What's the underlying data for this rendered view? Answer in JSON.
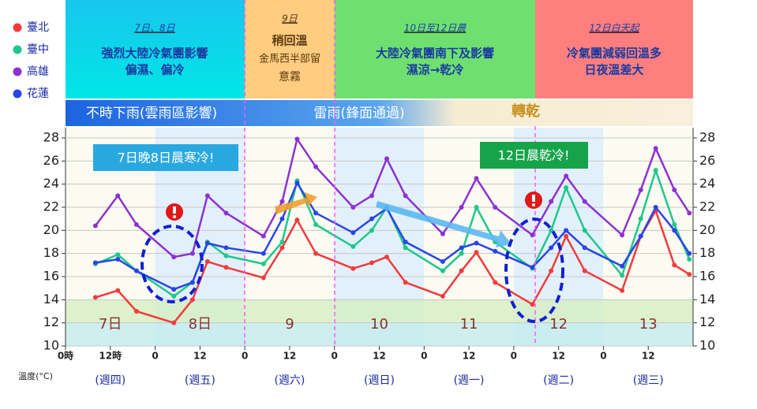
{
  "header": {
    "banners": [
      {
        "date": "7日、8日",
        "lines": [
          "強烈大陸冷氣團影響",
          "偏濕、偏冷"
        ]
      },
      {
        "date": "9日",
        "lines": [
          "稍回溫",
          "金馬西半部留",
          "意霧"
        ]
      },
      {
        "date": "10日至12日晨",
        "lines": [
          "大陸冷氣團南下及影響",
          "濕涼→乾冷"
        ]
      },
      {
        "date": "12日白天起",
        "lines": [
          "冷氣團減弱回溫多",
          "日夜溫差大"
        ]
      }
    ],
    "strip": [
      "不時下雨(雲雨區影響)",
      "雷雨(鋒面通過)",
      "轉乾"
    ]
  },
  "chart_data": {
    "type": "line",
    "ylabel": "溫度(°C)",
    "annotations": [
      "7日晚8日晨寒冷!",
      "12日晨乾冷!"
    ],
    "day_labels": [
      "7日",
      "8日",
      "9",
      "10",
      "11",
      "12",
      "13"
    ],
    "weekday_labels": [
      "(週四)",
      "(週五)",
      "(週六)",
      "(週日)",
      "(週一)",
      "(週二)",
      "(週三)"
    ],
    "x": [
      8,
      14,
      19,
      29,
      34,
      38,
      43,
      53,
      58,
      62,
      67,
      77,
      82,
      86,
      91,
      101,
      106,
      110,
      115,
      125,
      130,
      134,
      139,
      149,
      154,
      158,
      163,
      167
    ],
    "series": [
      {
        "name": "臺北",
        "color": "#f03c3c",
        "values": [
          14.2,
          14.8,
          13,
          12.0,
          14,
          17.3,
          16.8,
          15.9,
          18.5,
          20.9,
          18,
          16.7,
          17.2,
          17.7,
          15.5,
          14.3,
          16.5,
          18.1,
          15.5,
          13.6,
          16.5,
          19.5,
          16.5,
          14.8,
          19.5,
          21.7,
          17,
          16.2
        ]
      },
      {
        "name": "臺中",
        "color": "#1ec88c",
        "values": [
          17.1,
          17.9,
          16.5,
          14.3,
          15.5,
          19.0,
          17.8,
          17.1,
          19,
          24.3,
          20.5,
          18.6,
          20,
          22.0,
          18.5,
          16.5,
          18,
          22.0,
          19,
          16.7,
          20,
          23.7,
          20,
          16.1,
          21,
          25.2,
          20.5,
          17.5
        ]
      },
      {
        "name": "高雄",
        "color": "#8c32d2",
        "values": [
          20.4,
          23.0,
          20.5,
          17.7,
          18,
          23.0,
          21.5,
          19.5,
          22.5,
          27.9,
          25.5,
          22.0,
          23,
          26.2,
          23,
          19.7,
          22,
          24.5,
          22,
          19.6,
          22.5,
          24.7,
          22.5,
          19.6,
          23.5,
          27.1,
          23.5,
          21.5
        ]
      },
      {
        "name": "花蓮",
        "color": "#2846e6",
        "values": [
          17.2,
          17.5,
          16.5,
          14.9,
          15.5,
          18.9,
          18.5,
          18.0,
          21,
          24.1,
          21.5,
          19.8,
          21,
          21.9,
          19,
          17.3,
          18.5,
          18.9,
          18.2,
          16.8,
          18.5,
          20.0,
          18.5,
          16.9,
          19.5,
          22.0,
          20,
          18.0
        ]
      }
    ],
    "xlim": [
      0,
      168
    ],
    "xticks": [
      {
        "value": 0,
        "label": "0時"
      },
      {
        "value": 12,
        "label": "12時"
      },
      {
        "value": 24,
        "label": "0"
      },
      {
        "value": 36,
        "label": "12"
      },
      {
        "value": 48,
        "label": "0"
      },
      {
        "value": 60,
        "label": "12"
      },
      {
        "value": 72,
        "label": "0"
      },
      {
        "value": 84,
        "label": "12"
      },
      {
        "value": 96,
        "label": "0"
      },
      {
        "value": 108,
        "label": "12"
      },
      {
        "value": 120,
        "label": "0"
      },
      {
        "value": 132,
        "label": "12"
      },
      {
        "value": 144,
        "label": "0"
      },
      {
        "value": 156,
        "label": "12"
      }
    ],
    "ylim": [
      10,
      28
    ],
    "yticks": [
      10,
      12,
      14,
      16,
      18,
      20,
      22,
      24,
      26,
      28
    ],
    "grid": true
  }
}
